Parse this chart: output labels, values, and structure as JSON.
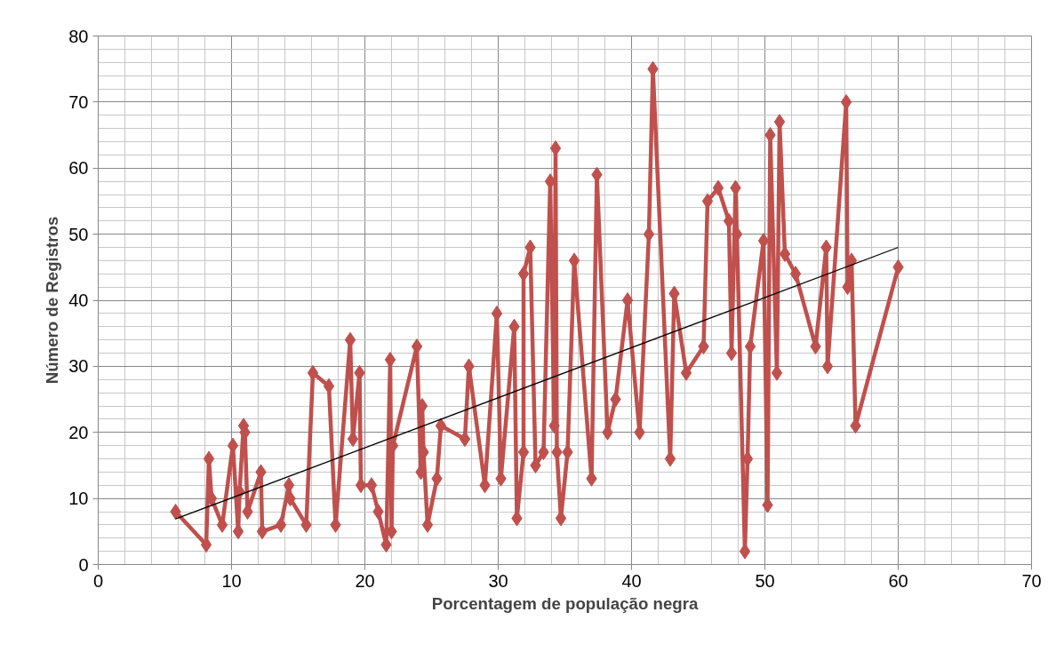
{
  "chart_data": {
    "type": "line",
    "xlabel": "Porcentagem de população negra",
    "ylabel": "Número de Registros",
    "xlim": [
      0,
      70
    ],
    "xticks": [
      0,
      10,
      20,
      30,
      40,
      50,
      60,
      70
    ],
    "ylim": [
      0,
      80
    ],
    "yticks": [
      0,
      10,
      20,
      30,
      40,
      50,
      60,
      70,
      80
    ],
    "grid": true,
    "marker": "diamond",
    "line_style": "solid",
    "series": [
      {
        "color": "#c0504d",
        "x": [
          5.8,
          8.1,
          8.3,
          8.5,
          9.3,
          10.1,
          10.5,
          10.6,
          10.9,
          11.0,
          11.2,
          12.2,
          12.3,
          13.7,
          14.3,
          14.4,
          15.6,
          16.1,
          17.3,
          17.8,
          18.9,
          19.1,
          19.6,
          19.7,
          20.5,
          21.0,
          21.6,
          21.9,
          22.0,
          22.1,
          23.9,
          24.2,
          24.3,
          24.4,
          24.7,
          25.4,
          25.7,
          27.5,
          27.8,
          29.0,
          29.9,
          30.2,
          31.2,
          31.4,
          31.9,
          31.9,
          32.4,
          32.8,
          33.4,
          33.9,
          34.2,
          34.3,
          34.4,
          34.7,
          35.2,
          35.7,
          37.0,
          37.4,
          38.2,
          38.8,
          39.7,
          40.6,
          41.3,
          41.6,
          42.9,
          43.2,
          44.1,
          45.4,
          45.7,
          46.5,
          47.3,
          47.5,
          47.8,
          47.9,
          48.5,
          48.7,
          48.9,
          49.9,
          50.2,
          50.4,
          50.9,
          51.1,
          51.5,
          52.3,
          53.8,
          54.6,
          54.7,
          56.1,
          56.2,
          56.5,
          56.8,
          60.0
        ],
        "values": [
          8,
          3,
          16,
          10,
          6,
          18,
          5,
          11,
          21,
          20,
          8,
          14,
          5,
          6,
          12,
          10,
          6,
          29,
          27,
          6,
          34,
          19,
          29,
          12,
          12,
          8,
          3,
          31,
          5,
          18,
          33,
          14,
          24,
          17,
          6,
          13,
          21,
          19,
          30,
          12,
          38,
          13,
          36,
          7,
          17,
          44,
          48,
          15,
          17,
          58,
          21,
          63,
          17,
          7,
          17,
          46,
          13,
          59,
          20,
          25,
          40,
          20,
          50,
          75,
          16,
          41,
          29,
          33,
          55,
          57,
          52,
          32,
          57,
          50,
          2,
          16,
          33,
          49,
          9,
          65,
          29,
          67,
          47,
          44,
          33,
          48,
          30,
          70,
          42,
          46,
          21,
          45
        ]
      },
      {
        "color": "#000000",
        "type": "line",
        "marker": "none",
        "x": [
          5.8,
          60.0
        ],
        "values": [
          6.9,
          48
        ]
      }
    ]
  }
}
